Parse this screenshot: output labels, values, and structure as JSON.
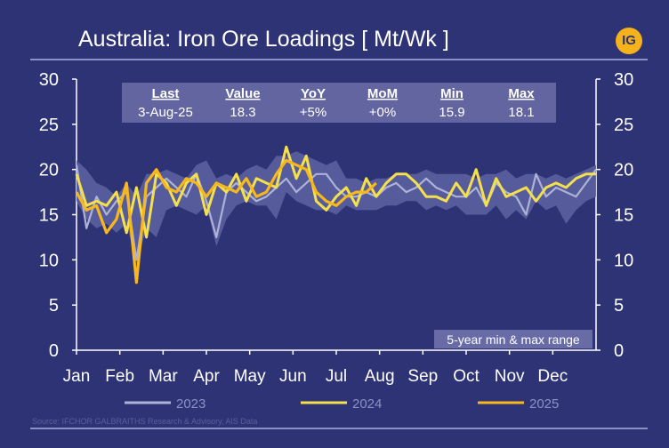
{
  "header": {
    "title": "Australia: Iron Ore Loadings [ Mt/Wk ]",
    "logo_text": "IG"
  },
  "stats_table": {
    "headers": [
      "Last",
      "Value",
      "YoY",
      "MoM",
      "Min",
      "Max"
    ],
    "values": [
      "3-Aug-25",
      "18.3",
      "+5%",
      "+0%",
      "15.9",
      "18.1"
    ]
  },
  "range_label": "5-year min & max range",
  "source": "Source: IFCHOR GALBRAITHS Research & Advisory, AIS Data",
  "colors": {
    "background": "#2e3375",
    "range_band": "#5b5fa0",
    "series_2023": "#aeb2d6",
    "series_2024": "#f4e04d",
    "series_2025": "#f7b71d",
    "axis": "#ffffff",
    "grid": "#3d4282"
  },
  "chart_data": {
    "type": "line",
    "title": "Australia: Iron Ore Loadings [ Mt/Wk ]",
    "xlabel": "",
    "ylabel": "",
    "x_unit": "week of year",
    "xlim": [
      1,
      53
    ],
    "ylim": [
      0,
      30
    ],
    "yticks": [
      0,
      5,
      10,
      15,
      20,
      25,
      30
    ],
    "month_labels": [
      "Jan",
      "Feb",
      "Mar",
      "Apr",
      "May",
      "Jun",
      "Jul",
      "Aug",
      "Sep",
      "Oct",
      "Nov",
      "Dec"
    ],
    "grid": false,
    "legend_position": "bottom",
    "range_band": {
      "name": "5-year min & max range",
      "x": [
        1,
        2,
        3,
        4,
        5,
        6,
        7,
        8,
        9,
        10,
        11,
        12,
        13,
        14,
        15,
        16,
        17,
        18,
        19,
        20,
        21,
        22,
        23,
        24,
        25,
        26,
        27,
        28,
        29,
        30,
        31,
        32,
        33,
        34,
        35,
        36,
        37,
        38,
        39,
        40,
        41,
        42,
        43,
        44,
        45,
        46,
        47,
        48,
        49,
        50,
        51,
        52,
        53
      ],
      "min": [
        16.5,
        14.5,
        13.5,
        14.0,
        13.0,
        14.0,
        9.5,
        13.5,
        12.5,
        15.5,
        16.0,
        15.5,
        15.0,
        16.0,
        11.5,
        14.5,
        16.0,
        16.5,
        16.0,
        16.0,
        14.5,
        17.5,
        16.5,
        16.0,
        15.5,
        15.5,
        15.0,
        16.0,
        15.5,
        15.5,
        15.5,
        16.0,
        16.0,
        16.5,
        16.5,
        15.5,
        16.0,
        15.5,
        16.0,
        15.0,
        15.0,
        15.0,
        16.0,
        14.5,
        15.5,
        14.5,
        16.5,
        15.5,
        16.0,
        14.0,
        15.5,
        16.5,
        17.0
      ],
      "max": [
        21.0,
        20.0,
        18.5,
        18.0,
        17.0,
        18.5,
        17.0,
        19.5,
        19.5,
        20.0,
        19.5,
        19.0,
        20.5,
        21.0,
        19.0,
        19.5,
        19.0,
        20.0,
        20.5,
        20.0,
        21.5,
        21.5,
        22.0,
        21.5,
        21.0,
        20.5,
        21.0,
        19.0,
        19.0,
        18.5,
        19.0,
        19.0,
        19.5,
        19.5,
        19.5,
        20.0,
        19.5,
        19.5,
        19.5,
        19.5,
        19.0,
        19.5,
        19.5,
        20.0,
        19.0,
        19.5,
        19.5,
        19.0,
        19.5,
        19.0,
        19.5,
        20.0,
        20.5
      ]
    },
    "series": [
      {
        "name": "2023",
        "x": [
          1,
          2,
          3,
          4,
          5,
          6,
          7,
          8,
          9,
          10,
          11,
          12,
          13,
          14,
          15,
          16,
          17,
          18,
          19,
          20,
          21,
          22,
          23,
          24,
          25,
          26,
          27,
          28,
          29,
          30,
          31,
          32,
          33,
          34,
          35,
          36,
          37,
          38,
          39,
          40,
          41,
          42,
          43,
          44,
          45,
          46,
          47,
          48,
          49,
          50,
          51,
          52,
          53
        ],
        "values": [
          20.5,
          13.5,
          17.0,
          15.0,
          16.5,
          17.5,
          10.0,
          17.0,
          18.0,
          19.0,
          18.0,
          17.0,
          19.5,
          16.5,
          12.5,
          17.5,
          18.5,
          17.5,
          16.5,
          17.0,
          18.0,
          19.0,
          17.5,
          18.5,
          19.5,
          19.5,
          18.0,
          17.0,
          17.0,
          17.5,
          17.0,
          18.0,
          18.5,
          17.5,
          18.0,
          19.0,
          18.0,
          17.5,
          17.0,
          17.0,
          18.0,
          16.0,
          18.5,
          17.5,
          17.0,
          15.0,
          19.5,
          17.0,
          18.0,
          17.5,
          17.0,
          18.5,
          20.0
        ]
      },
      {
        "name": "2024",
        "x": [
          1,
          2,
          3,
          4,
          5,
          6,
          7,
          8,
          9,
          10,
          11,
          12,
          13,
          14,
          15,
          16,
          17,
          18,
          19,
          20,
          21,
          22,
          23,
          24,
          25,
          26,
          27,
          28,
          29,
          30,
          31,
          32,
          33,
          34,
          35,
          36,
          37,
          38,
          39,
          40,
          41,
          42,
          43,
          44,
          45,
          46,
          47,
          48,
          49,
          50,
          51,
          52,
          53
        ],
        "values": [
          19.5,
          16.0,
          16.5,
          16.0,
          17.5,
          13.0,
          18.0,
          12.5,
          19.5,
          18.5,
          16.0,
          18.5,
          19.5,
          15.0,
          18.5,
          17.5,
          19.5,
          16.5,
          19.0,
          18.5,
          18.0,
          22.5,
          19.0,
          21.5,
          16.5,
          15.5,
          17.0,
          18.0,
          16.0,
          19.0,
          17.0,
          18.5,
          19.5,
          19.5,
          18.5,
          17.0,
          17.0,
          16.5,
          18.5,
          17.0,
          20.0,
          16.0,
          19.0,
          17.0,
          17.5,
          18.0,
          16.5,
          18.0,
          18.5,
          18.0,
          19.0,
          19.5,
          19.5
        ]
      },
      {
        "name": "2025",
        "x": [
          1,
          2,
          3,
          4,
          5,
          6,
          7,
          8,
          9,
          10,
          11,
          12,
          13,
          14,
          15,
          16,
          17,
          18,
          19,
          20,
          21,
          22,
          23,
          24,
          25,
          26,
          27,
          28,
          29,
          30,
          31
        ],
        "values": [
          17.5,
          15.5,
          16.0,
          13.0,
          14.5,
          18.5,
          7.5,
          18.5,
          20.0,
          18.0,
          17.5,
          19.0,
          18.5,
          17.0,
          18.5,
          18.0,
          17.5,
          19.0,
          17.0,
          17.5,
          19.5,
          21.0,
          20.5,
          20.0,
          17.5,
          16.5,
          16.0,
          17.0,
          17.5,
          17.5,
          18.5
        ]
      }
    ]
  }
}
